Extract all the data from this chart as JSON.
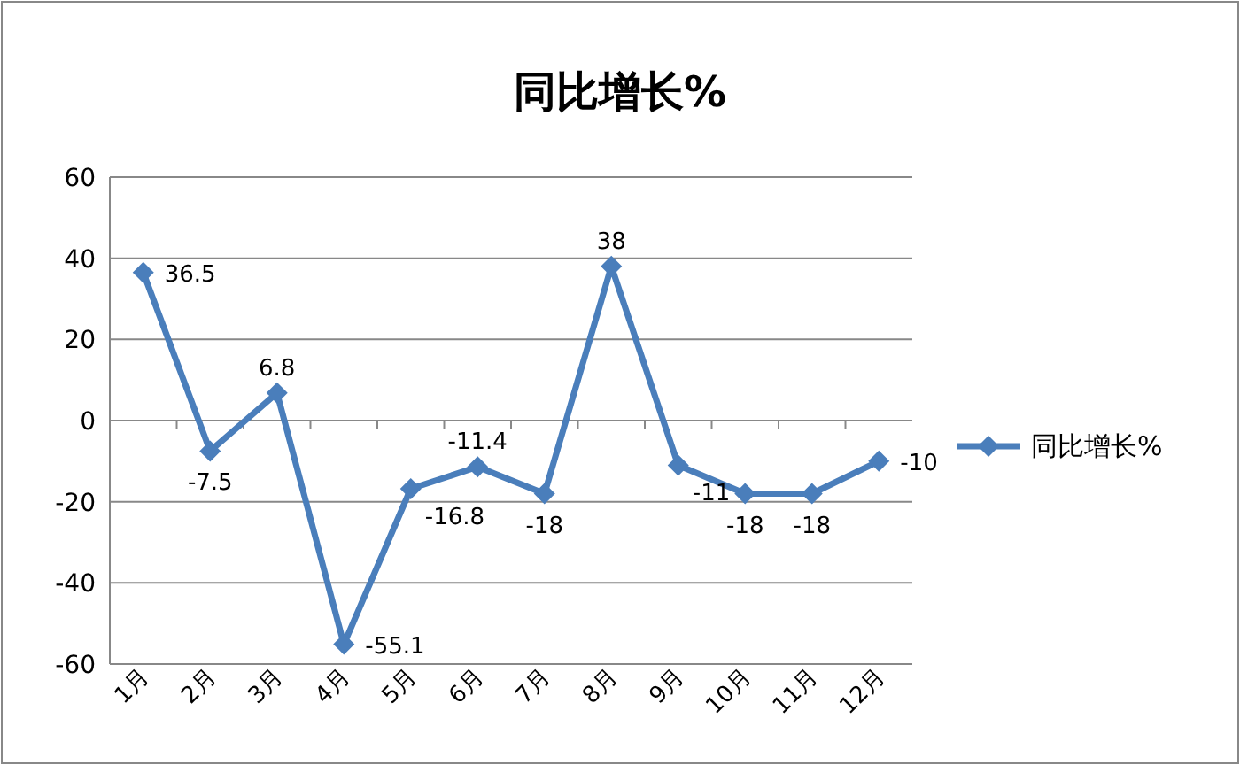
{
  "chart_data": {
    "type": "line",
    "title": "同比增长%",
    "categories": [
      "1月",
      "2月",
      "3月",
      "4月",
      "5月",
      "6月",
      "7月",
      "8月",
      "9月",
      "10月",
      "11月",
      "12月"
    ],
    "series": [
      {
        "name": "同比增长%",
        "color": "#4a7ebb",
        "values": [
          36.5,
          -7.5,
          6.8,
          -55.1,
          -16.8,
          -11.4,
          -18,
          38,
          -11,
          -18,
          -18,
          -10
        ]
      }
    ],
    "ylim": [
      -60,
      60
    ],
    "yticks": [
      -60,
      -40,
      -20,
      0,
      20,
      40,
      60
    ],
    "grid": "y",
    "legend": "right",
    "marker": "diamond",
    "data_labels": true
  }
}
